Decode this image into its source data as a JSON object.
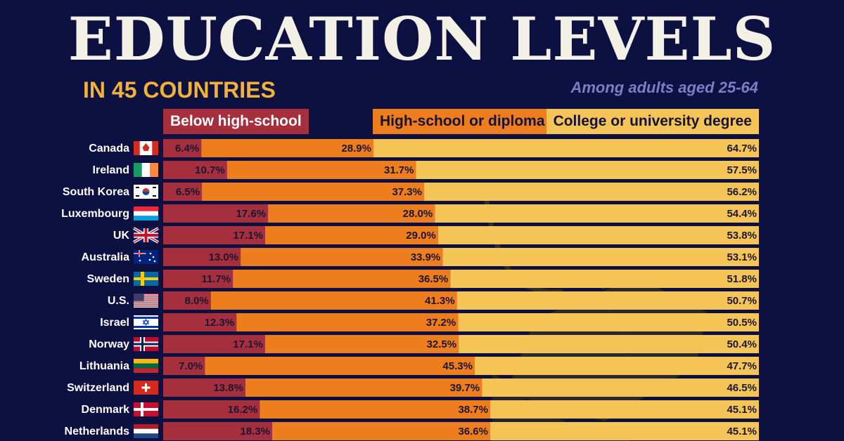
{
  "title": "EDUCATION LEVELS",
  "subtitle": "IN 45 COUNTRIES",
  "note": "Among adults aged 25-64",
  "legend": {
    "below": "Below high-school",
    "high": "High-school or diploma",
    "college": "College or university degree"
  },
  "colors": {
    "background": "#0d1142",
    "below": "#a52f3c",
    "high": "#ee7d1d",
    "college": "#f5c456"
  },
  "chart_data": {
    "type": "bar",
    "stacked": true,
    "orientation": "horizontal",
    "categories": [
      "Canada",
      "Ireland",
      "South Korea",
      "Luxembourg",
      "UK",
      "Australia",
      "Sweden",
      "U.S.",
      "Israel",
      "Norway",
      "Lithuania",
      "Switzerland",
      "Denmark",
      "Netherlands"
    ],
    "flags": [
      "canada-flag-icon",
      "ireland-flag-icon",
      "south-korea-flag-icon",
      "luxembourg-flag-icon",
      "uk-flag-icon",
      "australia-flag-icon",
      "sweden-flag-icon",
      "us-flag-icon",
      "israel-flag-icon",
      "norway-flag-icon",
      "lithuania-flag-icon",
      "switzerland-flag-icon",
      "denmark-flag-icon",
      "netherlands-flag-icon"
    ],
    "series": [
      {
        "name": "Below high-school",
        "values": [
          6.4,
          10.7,
          6.5,
          17.6,
          17.1,
          13.0,
          11.7,
          8.0,
          12.3,
          17.1,
          7.0,
          13.8,
          16.2,
          18.3
        ]
      },
      {
        "name": "High-school or diploma",
        "values": [
          28.9,
          31.7,
          37.3,
          28.0,
          29.0,
          33.9,
          36.5,
          41.3,
          37.2,
          32.5,
          45.3,
          39.7,
          38.7,
          36.6
        ]
      },
      {
        "name": "College or university degree",
        "values": [
          64.7,
          57.5,
          56.2,
          54.4,
          53.8,
          53.1,
          51.8,
          50.7,
          50.5,
          50.4,
          47.7,
          46.5,
          45.1,
          45.1
        ]
      }
    ],
    "labels": {
      "below": [
        "6.4%",
        "10.7%",
        "6.5%",
        "17.6%",
        "17.1%",
        "13.0%",
        "11.7%",
        "8.0%",
        "12.3%",
        "17.1%",
        "7.0%",
        "13.8%",
        "16.2%",
        "18.3%"
      ],
      "high": [
        "28.9%",
        "31.7%",
        "37.3%",
        "28.0%",
        "29.0%",
        "33.9%",
        "36.5%",
        "41.3%",
        "37.2%",
        "32.5%",
        "45.3%",
        "39.7%",
        "38.7%",
        "36.6%"
      ],
      "college": [
        "64.7%",
        "57.5%",
        "56.2%",
        "54.4%",
        "53.8%",
        "53.1%",
        "51.8%",
        "50.7%",
        "50.5%",
        "50.4%",
        "47.7%",
        "46.5%",
        "45.1%",
        "45.1%"
      ]
    },
    "xlim": [
      0,
      100
    ],
    "grid": false
  }
}
